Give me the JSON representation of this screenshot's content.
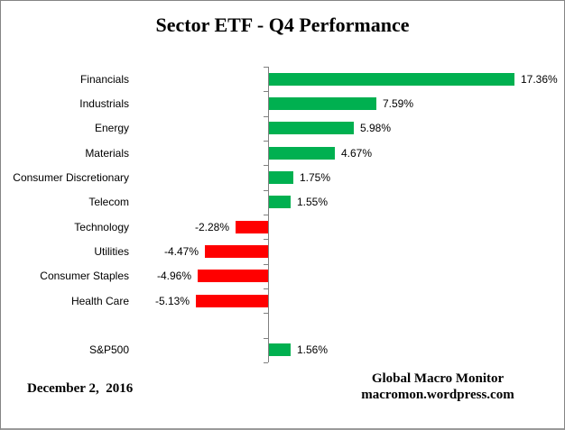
{
  "title": "Sector ETF - Q4 Performance",
  "footer": {
    "date": "December 2,  2016",
    "source_line1": "Global Macro Monitor",
    "source_line2": "macromon.wordpress.com"
  },
  "chart_data": {
    "type": "bar",
    "orientation": "horizontal",
    "title": "Sector ETF - Q4 Performance",
    "xlabel": "",
    "ylabel": "",
    "categories": [
      "Financials",
      "Industrials",
      "Energy",
      "Materials",
      "Consumer Discretionary",
      "Telecom",
      "Technology",
      "Utilities",
      "Consumer Staples",
      "Health Care"
    ],
    "values": [
      17.36,
      7.59,
      5.98,
      4.67,
      1.75,
      1.55,
      -2.28,
      -4.47,
      -4.96,
      -5.13
    ],
    "value_labels": [
      "17.36%",
      "7.59%",
      "5.98%",
      "4.67%",
      "1.75%",
      "1.55%",
      "-2.28%",
      "-4.47%",
      "-4.96%",
      "-5.13%"
    ],
    "benchmark": {
      "category": "S&P500",
      "value": 1.56,
      "label": "1.56%"
    },
    "gap_before_benchmark": true,
    "xlim": [
      -6,
      18
    ],
    "gridlines": false,
    "legend": "none",
    "colors": {
      "positive": "#00B050",
      "negative": "#FF0000",
      "axis": "#808080",
      "text": "#000000"
    }
  }
}
